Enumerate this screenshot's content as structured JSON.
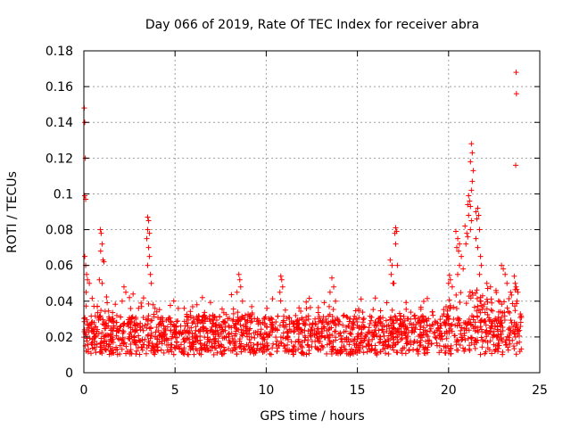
{
  "chart_data": {
    "type": "scatter",
    "title": "Day 066 of 2019, Rate Of TEC Index for receiver abra",
    "xlabel": "GPS time / hours",
    "ylabel": "ROTI / TECUs",
    "xlim": [
      0,
      25
    ],
    "ylim": [
      0,
      0.18
    ],
    "x_ticks": [
      0,
      5,
      10,
      15,
      20,
      25
    ],
    "y_ticks": [
      0,
      0.02,
      0.04,
      0.06,
      0.08,
      0.1,
      0.12,
      0.14,
      0.16,
      0.18
    ],
    "x_tick_labels": [
      "0",
      "5",
      "10",
      "15",
      "20",
      "25"
    ],
    "y_tick_labels": [
      "0",
      "0.02",
      "0.04",
      "0.06",
      "0.08",
      "0.1",
      "0.12",
      "0.14",
      "0.16",
      "0.18"
    ],
    "grid": true,
    "marker": "+",
    "color": "#ff0000",
    "series": [
      {
        "name": "ROTI",
        "points": [
          [
            0.02,
            0.148
          ],
          [
            0.05,
            0.14
          ],
          [
            0.08,
            0.12
          ],
          [
            0.05,
            0.099
          ],
          [
            0.1,
            0.097
          ],
          [
            0.05,
            0.065
          ],
          [
            0.1,
            0.06
          ],
          [
            0.15,
            0.055
          ],
          [
            0.2,
            0.052
          ],
          [
            0.3,
            0.05
          ],
          [
            0.12,
            0.045
          ],
          [
            0.9,
            0.08
          ],
          [
            0.95,
            0.078
          ],
          [
            1.0,
            0.072
          ],
          [
            0.92,
            0.068
          ],
          [
            1.05,
            0.063
          ],
          [
            1.1,
            0.062
          ],
          [
            0.85,
            0.052
          ],
          [
            1.0,
            0.05
          ],
          [
            2.2,
            0.048
          ],
          [
            2.3,
            0.045
          ],
          [
            2.5,
            0.042
          ],
          [
            2.1,
            0.04
          ],
          [
            2.7,
            0.044
          ],
          [
            3.0,
            0.036
          ],
          [
            3.5,
            0.087
          ],
          [
            3.55,
            0.085
          ],
          [
            3.5,
            0.08
          ],
          [
            3.6,
            0.078
          ],
          [
            3.45,
            0.075
          ],
          [
            3.55,
            0.07
          ],
          [
            3.6,
            0.065
          ],
          [
            3.5,
            0.06
          ],
          [
            3.65,
            0.055
          ],
          [
            3.7,
            0.05
          ],
          [
            3.8,
            0.038
          ],
          [
            3.9,
            0.036
          ],
          [
            4.0,
            0.034
          ],
          [
            5.5,
            0.036
          ],
          [
            6.2,
            0.038
          ],
          [
            6.5,
            0.042
          ],
          [
            8.5,
            0.055
          ],
          [
            8.55,
            0.052
          ],
          [
            8.6,
            0.048
          ],
          [
            8.4,
            0.045
          ],
          [
            8.7,
            0.04
          ],
          [
            10.8,
            0.054
          ],
          [
            10.85,
            0.052
          ],
          [
            10.9,
            0.048
          ],
          [
            10.75,
            0.045
          ],
          [
            13.6,
            0.053
          ],
          [
            13.7,
            0.048
          ],
          [
            13.5,
            0.045
          ],
          [
            13.8,
            0.04
          ],
          [
            16.8,
            0.063
          ],
          [
            16.9,
            0.06
          ],
          [
            16.85,
            0.055
          ],
          [
            16.95,
            0.05
          ],
          [
            17.1,
            0.081
          ],
          [
            17.15,
            0.079
          ],
          [
            17.05,
            0.078
          ],
          [
            17.1,
            0.072
          ],
          [
            17.2,
            0.06
          ],
          [
            17.0,
            0.05
          ],
          [
            20.0,
            0.05
          ],
          [
            20.1,
            0.052
          ],
          [
            20.2,
            0.048
          ],
          [
            20.4,
            0.079
          ],
          [
            20.5,
            0.075
          ],
          [
            20.6,
            0.072
          ],
          [
            20.45,
            0.07
          ],
          [
            20.55,
            0.068
          ],
          [
            20.7,
            0.065
          ],
          [
            20.6,
            0.06
          ],
          [
            20.8,
            0.058
          ],
          [
            20.5,
            0.055
          ],
          [
            20.9,
            0.082
          ],
          [
            21.0,
            0.078
          ],
          [
            21.05,
            0.076
          ],
          [
            20.95,
            0.072
          ],
          [
            21.1,
            0.099
          ],
          [
            21.15,
            0.096
          ],
          [
            21.05,
            0.094
          ],
          [
            21.2,
            0.093
          ],
          [
            21.1,
            0.088
          ],
          [
            21.25,
            0.085
          ],
          [
            21.2,
            0.08
          ],
          [
            21.25,
            0.128
          ],
          [
            21.3,
            0.123
          ],
          [
            21.2,
            0.118
          ],
          [
            21.35,
            0.113
          ],
          [
            21.3,
            0.107
          ],
          [
            21.25,
            0.102
          ],
          [
            21.5,
            0.09
          ],
          [
            21.55,
            0.086
          ],
          [
            21.6,
            0.092
          ],
          [
            21.65,
            0.088
          ],
          [
            21.7,
            0.08
          ],
          [
            21.5,
            0.075
          ],
          [
            21.6,
            0.07
          ],
          [
            21.75,
            0.065
          ],
          [
            21.8,
            0.06
          ],
          [
            21.7,
            0.055
          ],
          [
            22.1,
            0.05
          ],
          [
            22.3,
            0.048
          ],
          [
            22.6,
            0.046
          ],
          [
            22.9,
            0.06
          ],
          [
            23.0,
            0.058
          ],
          [
            23.1,
            0.055
          ],
          [
            23.2,
            0.05
          ],
          [
            23.4,
            0.045
          ],
          [
            23.7,
            0.168
          ],
          [
            23.72,
            0.156
          ],
          [
            23.68,
            0.116
          ],
          [
            23.6,
            0.054
          ],
          [
            23.65,
            0.05
          ],
          [
            23.7,
            0.048
          ],
          [
            23.8,
            0.045
          ],
          [
            23.75,
            0.04
          ]
        ]
      }
    ]
  }
}
